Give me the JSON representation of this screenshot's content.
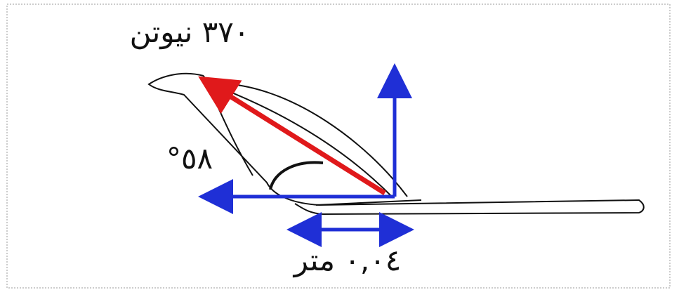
{
  "labels": {
    "force": "٣٧٠ نيوتن",
    "angle": "°٥٨",
    "distance": "٠,٠٤ متر"
  }
}
